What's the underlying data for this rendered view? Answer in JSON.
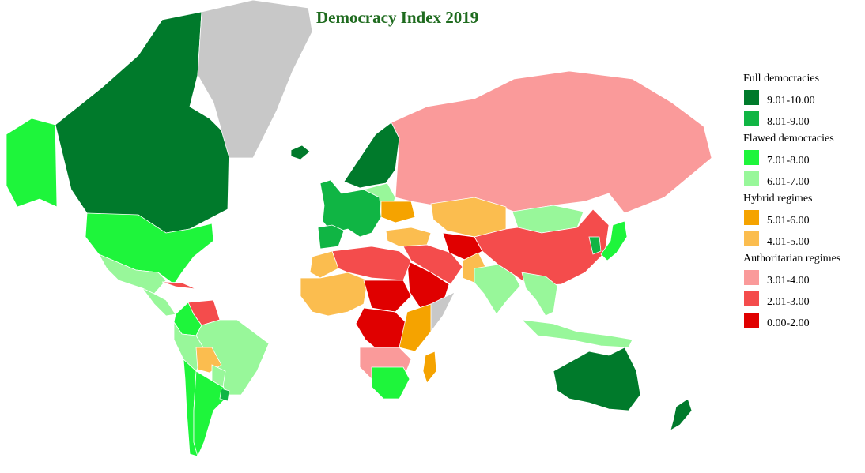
{
  "title": "Democracy Index 2019",
  "legend": {
    "groups": [
      {
        "title": "Full democracies",
        "items": [
          {
            "label": "9.01-10.00",
            "color": "#007a2b"
          },
          {
            "label": "8.01-9.00",
            "color": "#10b544"
          }
        ]
      },
      {
        "title": "Flawed democracies",
        "items": [
          {
            "label": "7.01-8.00",
            "color": "#1ef53b"
          },
          {
            "label": "6.01-7.00",
            "color": "#98f79a"
          }
        ]
      },
      {
        "title": "Hybrid regimes",
        "items": [
          {
            "label": "5.01-6.00",
            "color": "#f5a300"
          },
          {
            "label": "4.01-5.00",
            "color": "#fbbd4f"
          }
        ]
      },
      {
        "title": "Authoritarian regimes",
        "items": [
          {
            "label": "3.01-4.00",
            "color": "#fa9a9a"
          },
          {
            "label": "2.01-3.00",
            "color": "#f44c4c"
          },
          {
            "label": "0.00-2.00",
            "color": "#e00000"
          }
        ]
      }
    ]
  },
  "colors": {
    "background": "#ffffff",
    "no_data": "#c8c8c8",
    "title": "#1f6b1f",
    "border": "#ffffff"
  },
  "regions": [
    {
      "name": "alaska",
      "category": "7.01-8.00"
    },
    {
      "name": "canada",
      "category": "9.01-10.00"
    },
    {
      "name": "greenland",
      "category": "no-data"
    },
    {
      "name": "united-states",
      "category": "7.01-8.00"
    },
    {
      "name": "mexico",
      "category": "6.01-7.00"
    },
    {
      "name": "central-america",
      "category": "6.01-7.00"
    },
    {
      "name": "cuba",
      "category": "2.01-3.00"
    },
    {
      "name": "venezuela",
      "category": "2.01-3.00"
    },
    {
      "name": "colombia",
      "category": "7.01-8.00"
    },
    {
      "name": "brazil",
      "category": "6.01-7.00"
    },
    {
      "name": "peru",
      "category": "6.01-7.00"
    },
    {
      "name": "bolivia",
      "category": "4.01-5.00"
    },
    {
      "name": "chile",
      "category": "7.01-8.00"
    },
    {
      "name": "argentina",
      "category": "7.01-8.00"
    },
    {
      "name": "uruguay",
      "category": "8.01-9.00"
    },
    {
      "name": "paraguay",
      "category": "6.01-7.00"
    },
    {
      "name": "iceland",
      "category": "9.01-10.00"
    },
    {
      "name": "scandinavia",
      "category": "9.01-10.00"
    },
    {
      "name": "western-europe",
      "category": "8.01-9.00"
    },
    {
      "name": "iberia",
      "category": "8.01-9.00"
    },
    {
      "name": "eastern-europe",
      "category": "6.01-7.00"
    },
    {
      "name": "ukraine",
      "category": "5.01-6.00"
    },
    {
      "name": "russia",
      "category": "3.01-4.00"
    },
    {
      "name": "turkey",
      "category": "4.01-5.00"
    },
    {
      "name": "kazakhstan",
      "category": "4.01-5.00"
    },
    {
      "name": "mongolia",
      "category": "6.01-7.00"
    },
    {
      "name": "china",
      "category": "2.01-3.00"
    },
    {
      "name": "middle-east",
      "category": "2.01-3.00"
    },
    {
      "name": "saudi-arabia",
      "category": "0.00-2.00"
    },
    {
      "name": "central-asia",
      "category": "0.00-2.00"
    },
    {
      "name": "pakistan",
      "category": "4.01-5.00"
    },
    {
      "name": "india",
      "category": "6.01-7.00"
    },
    {
      "name": "southeast-asia",
      "category": "6.01-7.00"
    },
    {
      "name": "indonesia",
      "category": "6.01-7.00"
    },
    {
      "name": "japan",
      "category": "7.01-8.00"
    },
    {
      "name": "korea",
      "category": "8.01-9.00"
    },
    {
      "name": "north-africa",
      "category": "2.01-3.00"
    },
    {
      "name": "morocco",
      "category": "4.01-5.00"
    },
    {
      "name": "west-africa",
      "category": "4.01-5.00"
    },
    {
      "name": "sahel",
      "category": "0.00-2.00"
    },
    {
      "name": "central-africa",
      "category": "0.00-2.00"
    },
    {
      "name": "east-africa",
      "category": "5.01-6.00"
    },
    {
      "name": "horn-of-africa",
      "category": "no-data"
    },
    {
      "name": "southern-africa",
      "category": "3.01-4.00"
    },
    {
      "name": "south-africa",
      "category": "7.01-8.00"
    },
    {
      "name": "madagascar",
      "category": "5.01-6.00"
    },
    {
      "name": "australia",
      "category": "9.01-10.00"
    },
    {
      "name": "new-zealand",
      "category": "9.01-10.00"
    }
  ]
}
